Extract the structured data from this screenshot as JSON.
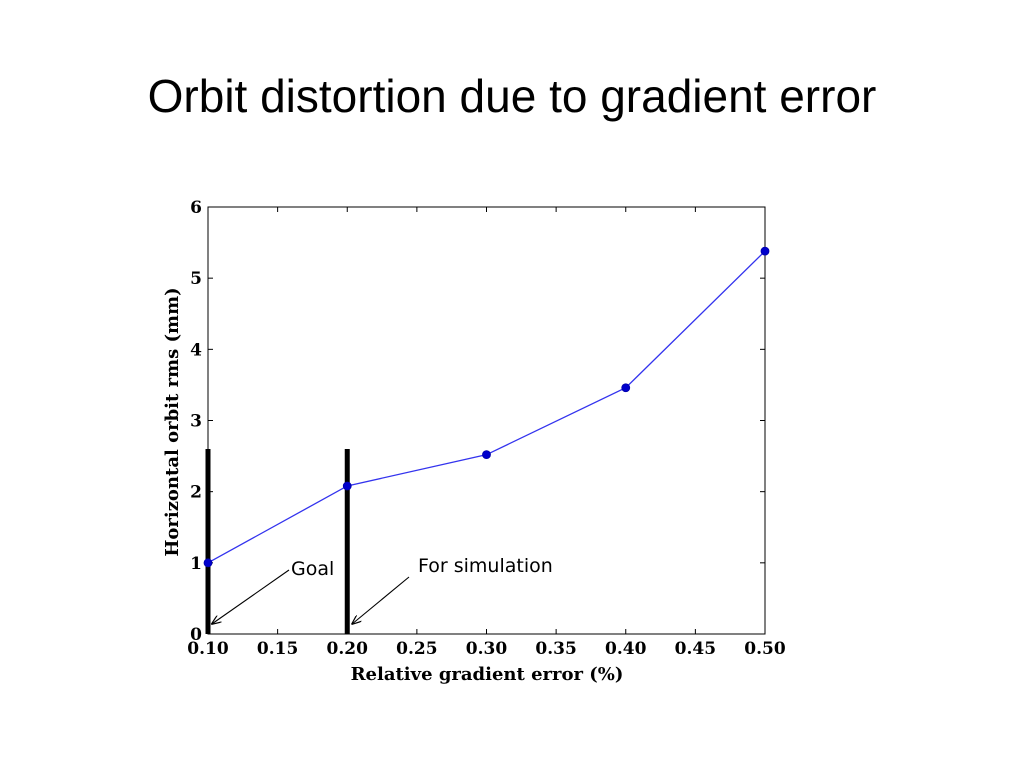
{
  "slide": {
    "title": "Orbit distortion due to gradient error"
  },
  "chart_data": {
    "type": "line",
    "title": "",
    "xlabel": "Relative gradient error (%)",
    "ylabel": "Horizontal orbit rms (mm)",
    "xlim": [
      0.1,
      0.5
    ],
    "ylim": [
      0,
      6
    ],
    "xticks": [
      "0.10",
      "0.15",
      "0.20",
      "0.25",
      "0.30",
      "0.35",
      "0.40",
      "0.45",
      "0.50"
    ],
    "yticks": [
      "0",
      "1",
      "2",
      "3",
      "4",
      "5",
      "6"
    ],
    "grid": false,
    "series": [
      {
        "x": [
          0.1,
          0.2,
          0.3,
          0.4,
          0.5
        ],
        "y": [
          1.0,
          2.08,
          2.52,
          3.46,
          5.38
        ],
        "color": "#3333ee",
        "marker": "circle"
      }
    ],
    "vertical_markers": [
      {
        "x": 0.1,
        "y_top": 2.6,
        "color": "#000000"
      },
      {
        "x": 0.2,
        "y_top": 2.6,
        "color": "#000000"
      }
    ],
    "annotations": [
      {
        "text": "Goal",
        "target_x": 0.1,
        "target_y": 0.1
      },
      {
        "text": "For simulation",
        "target_x": 0.2,
        "target_y": 0.1
      }
    ]
  }
}
